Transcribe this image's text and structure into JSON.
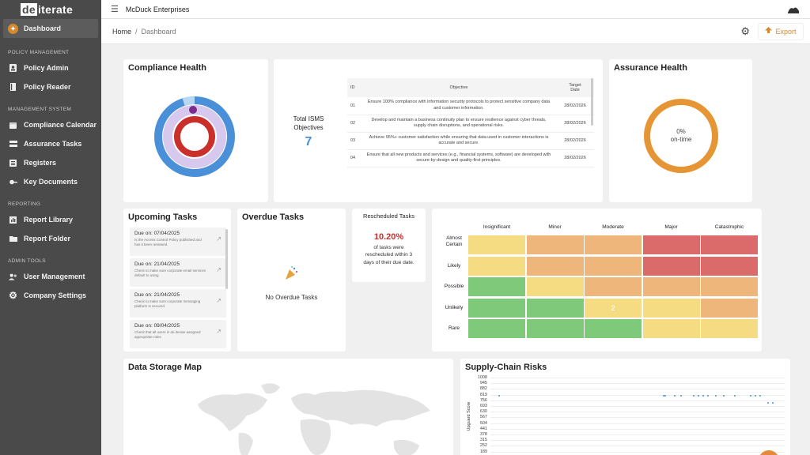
{
  "sidebar": {
    "logo_box": "de",
    "logo_rest": "iterate",
    "dashboard": "Dashboard",
    "sections": {
      "policy": "POLICY MANAGEMENT",
      "system": "MANAGEMENT SYSTEM",
      "reporting": "REPORTING",
      "admin": "ADMIN TOOLS"
    },
    "items": {
      "policy_admin": "Policy Admin",
      "policy_reader": "Policy Reader",
      "compliance_calendar": "Compliance Calendar",
      "assurance_tasks": "Assurance Tasks",
      "registers": "Registers",
      "key_documents": "Key Documents",
      "report_library": "Report Library",
      "report_folder": "Report Folder",
      "user_management": "User Management",
      "company_settings": "Company Settings"
    }
  },
  "topbar": {
    "org": "McDuck Enterprises"
  },
  "breadcrumb": {
    "home": "Home",
    "sep": "/",
    "current": "Dashboard"
  },
  "actions": {
    "export": "Export"
  },
  "compliance": {
    "title": "Compliance Health"
  },
  "isms": {
    "label_line1": "Total ISMS",
    "label_line2": "Objectives",
    "count": "7",
    "headers": {
      "id": "ID",
      "objective": "Objective",
      "target_line1": "Target",
      "target_line2": "Date"
    },
    "rows": [
      {
        "id": "01",
        "text": "Ensure 100% compliance with information security protocols to protect sensitive company data and customer information.",
        "date": "28/02/2026"
      },
      {
        "id": "02",
        "text": "Develop and maintain a business continuity plan to ensure resilience against cyber threats, supply chain disruptions, and operational risks.",
        "date": "28/02/2026"
      },
      {
        "id": "03",
        "text": "Achieve 95%+ customer satisfaction while ensuring that data used in customer interactions is accurate and secure.",
        "date": "28/02/2026"
      },
      {
        "id": "04",
        "text": "Ensure that all new products and services (e.g., financial systems, software) are developed with secure-by-design and quality-first principles.",
        "date": "28/02/2026"
      }
    ]
  },
  "assurance": {
    "title": "Assurance Health",
    "percent": "0%",
    "caption": "on-time",
    "value": 0
  },
  "upcoming": {
    "title": "Upcoming Tasks",
    "tasks": [
      {
        "due": "Due on: 07/04/2025",
        "desc": "Is the Access Control Policy published and has it been reviewed."
      },
      {
        "due": "Due on: 21/04/2025",
        "desc": "Check to make sure corporate email services default to using"
      },
      {
        "due": "Due on: 21/04/2025",
        "desc": "Check to make sure corporate messaging platform is secured"
      },
      {
        "due": "Due on: 09/04/2025",
        "desc": "Check that all users in de.iterate assigned appropriate roles"
      }
    ]
  },
  "overdue": {
    "title": "Overdue Tasks",
    "empty": "No Overdue Tasks"
  },
  "rescheduled": {
    "title": "Rescheduled Tasks",
    "percent": "10.20%",
    "line1": "of tasks were",
    "line2": "rescheduled within 3",
    "line3": "days of their due date."
  },
  "heatmap": {
    "columns": [
      "Insignificant",
      "Minor",
      "Moderate",
      "Major",
      "Catastrophic"
    ],
    "rows": [
      "Almost Certain",
      "Likely",
      "Possible",
      "Unlikely",
      "Rare"
    ],
    "colors": {
      "yellow": "#f5dc83",
      "orange": "#efb67c",
      "red": "#db6a6a",
      "green": "#7ec97a"
    },
    "grid": [
      [
        "yellow",
        "orange",
        "orange",
        "red",
        "red"
      ],
      [
        "yellow",
        "orange",
        "orange",
        "red",
        "red"
      ],
      [
        "green",
        "yellow",
        "orange",
        "orange",
        "orange"
      ],
      [
        "green",
        "green",
        "yellow",
        "yellow",
        "orange"
      ],
      [
        "green",
        "green",
        "green",
        "yellow",
        "yellow"
      ]
    ],
    "labels": {
      "3-2": "2"
    }
  },
  "datamap": {
    "title": "Data Storage Map"
  },
  "supply": {
    "title": "Supply-Chain Risks",
    "ylabel": "Upguard Score",
    "ticks": [
      "1008",
      "945",
      "882",
      "819",
      "756",
      "693",
      "630",
      "567",
      "504",
      "441",
      "378",
      "315",
      "252",
      "189"
    ]
  },
  "chart_data": {
    "type": "scatter",
    "title": "Supply-Chain Risks",
    "xlabel": "",
    "ylabel": "Upguard Score",
    "ylim": [
      189,
      1008
    ],
    "grid": true,
    "series": [
      {
        "values": [
          810,
          810,
          810,
          810,
          810,
          810,
          810,
          810,
          810,
          810,
          810,
          810,
          810,
          810,
          810,
          725,
          725
        ]
      }
    ]
  },
  "colors": {
    "accent": "#d48a2c",
    "primary_blue": "#4a90d9",
    "assurance_orange": "#e69534",
    "sidebar": "#4a4a4a"
  }
}
